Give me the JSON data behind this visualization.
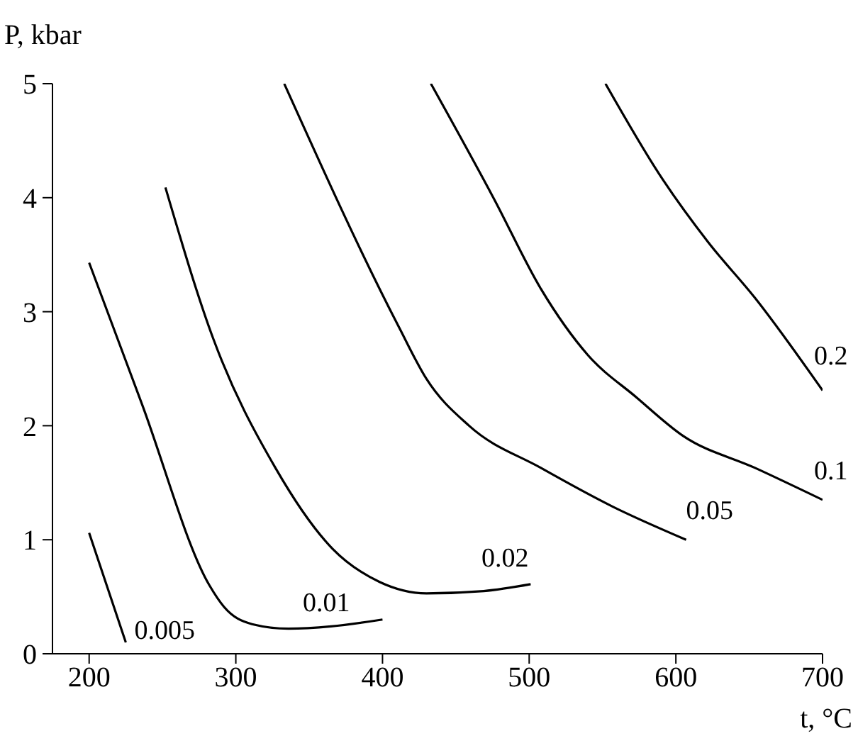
{
  "chart_data": {
    "type": "line",
    "xlabel": "t, °C",
    "ylabel": "P, kbar",
    "xlim": [
      175,
      700
    ],
    "xticks": [
      200,
      300,
      400,
      500,
      600,
      700
    ],
    "ylim": [
      0,
      5
    ],
    "yticks": [
      0,
      1,
      2,
      3,
      4,
      5
    ],
    "grid": false,
    "marker": "none",
    "line_style": "solid",
    "series": [
      {
        "name": "0.005",
        "color": "#000000",
        "x": [
          200,
          225
        ],
        "values": [
          1.06,
          0.1
        ]
      },
      {
        "name": "0.01",
        "color": "#000000",
        "x": [
          200,
          236,
          282,
          292,
          311,
          336,
          365,
          400
        ],
        "values": [
          3.43,
          2.19,
          0.6,
          0.41,
          0.26,
          0.22,
          0.24,
          0.3
        ]
      },
      {
        "name": "0.02",
        "color": "#000000",
        "x": [
          252,
          285,
          327,
          366,
          398,
          430,
          469,
          501
        ],
        "values": [
          4.09,
          2.75,
          1.63,
          0.92,
          0.63,
          0.53,
          0.55,
          0.61
        ]
      },
      {
        "name": "0.05",
        "color": "#000000",
        "x": [
          333,
          411,
          430,
          459,
          508,
          557,
          607
        ],
        "values": [
          5,
          2.87,
          2.41,
          2.0,
          1.63,
          1.29,
          1.0
        ]
      },
      {
        "name": "0.1",
        "color": "#000000",
        "x": [
          433,
          476,
          508,
          540,
          573,
          605,
          654,
          700
        ],
        "values": [
          5,
          3.99,
          3.2,
          2.62,
          2.25,
          1.91,
          1.63,
          1.35
        ]
      },
      {
        "name": "0.2",
        "color": "#000000",
        "x": [
          552,
          589,
          622,
          654,
          700
        ],
        "values": [
          5,
          4.2,
          3.61,
          3.12,
          2.31
        ]
      }
    ]
  }
}
